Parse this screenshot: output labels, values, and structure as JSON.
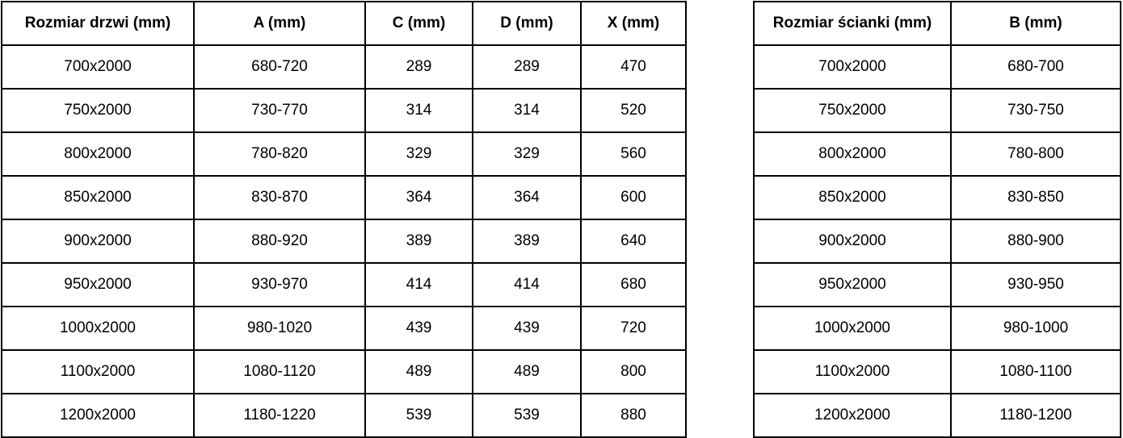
{
  "colors": {
    "border": "#000000",
    "text": "#000000",
    "background": "#ffffff"
  },
  "tables": {
    "doors": {
      "headers": [
        "Rozmiar drzwi (mm)",
        "A (mm)",
        "C (mm)",
        "D (mm)",
        "X (mm)"
      ],
      "rows": [
        [
          "700x2000",
          "680-720",
          "289",
          "289",
          "470"
        ],
        [
          "750x2000",
          "730-770",
          "314",
          "314",
          "520"
        ],
        [
          "800x2000",
          "780-820",
          "329",
          "329",
          "560"
        ],
        [
          "850x2000",
          "830-870",
          "364",
          "364",
          "600"
        ],
        [
          "900x2000",
          "880-920",
          "389",
          "389",
          "640"
        ],
        [
          "950x2000",
          "930-970",
          "414",
          "414",
          "680"
        ],
        [
          "1000x2000",
          "980-1020",
          "439",
          "439",
          "720"
        ],
        [
          "1100x2000",
          "1080-1120",
          "489",
          "489",
          "800"
        ],
        [
          "1200x2000",
          "1180-1220",
          "539",
          "539",
          "880"
        ]
      ]
    },
    "wall": {
      "headers": [
        "Rozmiar ścianki (mm)",
        "B (mm)"
      ],
      "rows": [
        [
          "700x2000",
          "680-700"
        ],
        [
          "750x2000",
          "730-750"
        ],
        [
          "800x2000",
          "780-800"
        ],
        [
          "850x2000",
          "830-850"
        ],
        [
          "900x2000",
          "880-900"
        ],
        [
          "950x2000",
          "930-950"
        ],
        [
          "1000x2000",
          "980-1000"
        ],
        [
          "1100x2000",
          "1080-1100"
        ],
        [
          "1200x2000",
          "1180-1200"
        ]
      ]
    }
  }
}
